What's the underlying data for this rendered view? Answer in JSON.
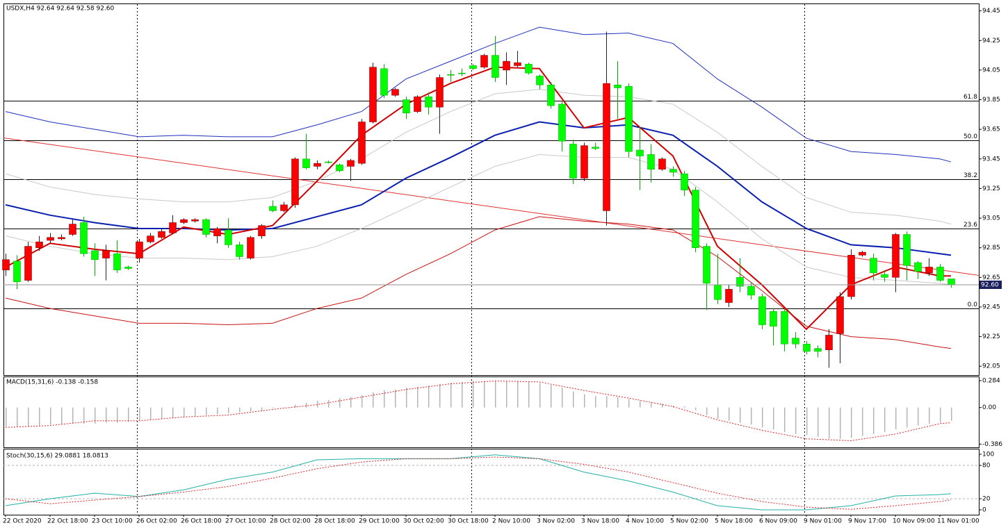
{
  "chart_data": [
    {
      "type": "candlestick",
      "title": "USDX,H4  92.64 92.64 92.58 92.60",
      "categories": [
        "22 Oct 2020",
        null,
        null,
        null,
        "22 Oct 18:00",
        null,
        null,
        null,
        "23 Oct 10:00",
        null,
        null,
        null,
        "26 Oct 02:00",
        null,
        null,
        null,
        "26 Oct 18:00",
        null,
        null,
        null,
        "27 Oct 10:00",
        null,
        null,
        null,
        "28 Oct 02:00",
        null,
        null,
        null,
        "28 Oct 18:00",
        null,
        null,
        null,
        "29 Oct 10:00",
        null,
        null,
        null,
        "30 Oct 02:00",
        null,
        null,
        null,
        "30 Oct 18:00",
        null,
        null,
        null,
        "2 Nov 10:00",
        null,
        null,
        null,
        "3 Nov 02:00",
        null,
        null,
        null,
        "3 Nov 18:00",
        null,
        null,
        null,
        "4 Nov 10:00",
        null,
        null,
        null,
        "5 Nov 02:00",
        null,
        null,
        null,
        "5 Nov 18:00",
        null,
        null,
        null,
        "6 Nov 09:00",
        null,
        null,
        null,
        "9 Nov 01:00",
        null,
        null,
        null,
        "9 Nov 17:00",
        null,
        null,
        null,
        "10 Nov 09:00",
        null,
        null,
        null,
        "11 Nov 01:00",
        null
      ],
      "open": [
        92.7,
        92.76,
        92.63,
        92.85,
        92.9,
        92.91,
        92.94,
        93.02,
        92.83,
        92.78,
        92.81,
        92.72,
        92.78,
        92.89,
        92.92,
        92.95,
        93.02,
        93.03,
        93.04,
        92.93,
        92.97,
        92.87,
        92.78,
        92.93,
        93.13,
        93.1,
        93.14,
        93.45,
        93.4,
        93.43,
        93.41,
        93.4,
        93.42,
        93.7,
        94.06,
        93.88,
        93.85,
        93.77,
        93.87,
        93.8,
        94.02,
        94.03,
        94.08,
        94.07,
        94.15,
        94.05,
        94.08,
        94.09,
        94.01,
        93.95,
        93.82,
        93.55,
        93.32,
        93.53,
        93.1,
        93.95,
        93.94,
        93.51,
        93.48,
        93.38,
        93.38,
        93.35,
        93.24,
        92.86,
        92.6,
        92.48,
        92.65,
        92.59,
        92.52,
        92.42,
        92.42,
        92.24,
        92.2,
        92.17,
        92.16,
        92.27,
        92.52,
        92.8,
        92.78,
        92.67,
        92.65,
        92.94,
        92.75,
        92.68,
        92.72,
        92.64
      ],
      "high": [
        92.81,
        92.8,
        92.89,
        92.93,
        92.95,
        92.94,
        93.04,
        93.06,
        92.88,
        92.87,
        92.9,
        92.73,
        92.91,
        92.95,
        92.98,
        93.07,
        93.05,
        93.05,
        93.05,
        92.99,
        93.05,
        92.89,
        92.93,
        93.01,
        93.17,
        93.16,
        93.46,
        93.62,
        93.44,
        93.44,
        93.42,
        93.45,
        93.72,
        94.1,
        94.09,
        93.93,
        93.87,
        93.88,
        93.9,
        94.02,
        94.05,
        94.06,
        94.09,
        94.16,
        94.28,
        94.17,
        94.18,
        94.1,
        94.02,
        93.97,
        93.84,
        93.58,
        93.56,
        93.56,
        94.31,
        94.11,
        93.96,
        93.67,
        93.55,
        93.46,
        93.4,
        93.37,
        93.26,
        92.88,
        92.81,
        92.6,
        92.78,
        92.62,
        92.54,
        92.44,
        92.44,
        92.28,
        92.22,
        92.19,
        92.3,
        92.55,
        92.84,
        92.83,
        92.81,
        92.7,
        92.95,
        92.96,
        92.76,
        92.78,
        92.74,
        92.64
      ],
      "low": [
        92.66,
        92.57,
        92.62,
        92.83,
        92.88,
        92.9,
        92.93,
        92.79,
        92.66,
        92.63,
        92.68,
        92.7,
        92.75,
        92.88,
        92.91,
        92.94,
        93.01,
        93.02,
        92.92,
        92.88,
        92.85,
        92.77,
        92.77,
        92.91,
        93.09,
        93.09,
        93.12,
        93.38,
        93.38,
        93.42,
        93.36,
        93.3,
        93.41,
        93.69,
        93.86,
        93.87,
        93.72,
        93.76,
        93.75,
        93.62,
        93.97,
        94.01,
        94.05,
        94.06,
        93.97,
        93.95,
        94.07,
        94.02,
        93.92,
        93.79,
        93.5,
        93.28,
        93.3,
        93.51,
        93.0,
        93.72,
        93.46,
        93.24,
        93.29,
        93.37,
        93.33,
        93.2,
        92.82,
        92.43,
        92.47,
        92.45,
        92.55,
        92.5,
        92.3,
        92.19,
        92.15,
        92.17,
        92.13,
        92.11,
        92.04,
        92.07,
        92.5,
        92.79,
        92.63,
        92.62,
        92.55,
        92.63,
        92.64,
        92.66,
        92.62,
        92.58
      ],
      "close": [
        92.77,
        92.62,
        92.86,
        92.89,
        92.92,
        92.92,
        93.01,
        92.81,
        92.77,
        92.83,
        92.7,
        92.71,
        92.89,
        92.93,
        92.96,
        93.02,
        93.04,
        93.04,
        92.94,
        92.98,
        92.87,
        92.79,
        92.92,
        93.0,
        93.1,
        93.14,
        93.45,
        93.39,
        93.42,
        93.43,
        93.37,
        93.44,
        93.7,
        94.07,
        93.88,
        93.92,
        93.76,
        93.87,
        93.8,
        94.0,
        94.02,
        94.03,
        94.06,
        94.15,
        94.0,
        94.11,
        94.1,
        94.03,
        93.95,
        93.81,
        93.57,
        93.32,
        93.54,
        93.52,
        93.96,
        93.93,
        93.5,
        93.47,
        93.38,
        93.45,
        93.36,
        93.24,
        92.85,
        92.61,
        92.5,
        92.57,
        92.59,
        92.53,
        92.33,
        92.32,
        92.2,
        92.2,
        92.15,
        92.15,
        92.26,
        92.52,
        92.8,
        92.82,
        92.68,
        92.65,
        92.94,
        92.73,
        92.69,
        92.72,
        92.63,
        92.6
      ],
      "up_color": "#ff0000",
      "down_color": "#00ff00",
      "ylim": [
        91.99,
        94.5
      ],
      "yticks": [
        94.45,
        94.25,
        94.05,
        93.85,
        93.65,
        93.45,
        93.25,
        93.05,
        92.85,
        92.65,
        92.45,
        92.25,
        92.05
      ],
      "series": [
        {
          "color": "#1e2fbf",
          "width": 1,
          "x": [
            0,
            4,
            8,
            12,
            16,
            20,
            24,
            28,
            32,
            36,
            40,
            44,
            48,
            52,
            56,
            60,
            64,
            68,
            72,
            76,
            80,
            84,
            85
          ],
          "values": [
            93.77,
            93.7,
            93.65,
            93.6,
            93.61,
            93.6,
            93.6,
            93.68,
            93.77,
            93.99,
            94.11,
            94.23,
            94.34,
            94.29,
            94.3,
            94.23,
            93.99,
            93.8,
            93.59,
            93.5,
            93.48,
            93.45,
            93.43
          ]
        },
        {
          "color": "#c8c8c8",
          "width": 1,
          "x": [
            0,
            4,
            8,
            12,
            16,
            20,
            24,
            28,
            32,
            36,
            40,
            44,
            48,
            52,
            56,
            60,
            64,
            68,
            72,
            76,
            80,
            84,
            85
          ],
          "values": [
            93.35,
            93.26,
            93.21,
            93.18,
            93.16,
            93.16,
            93.19,
            93.3,
            93.45,
            93.63,
            93.77,
            93.89,
            93.92,
            93.88,
            93.87,
            93.82,
            93.63,
            93.4,
            93.19,
            93.09,
            93.07,
            93.03,
            93.01
          ]
        },
        {
          "color": "#c8c8c8",
          "width": 1,
          "x": [
            0,
            4,
            8,
            12,
            16,
            20,
            24,
            28,
            32,
            36,
            40,
            44,
            48,
            52,
            56,
            60,
            64,
            68,
            72,
            76,
            80,
            84,
            85
          ],
          "values": [
            92.93,
            92.86,
            92.81,
            92.78,
            92.78,
            92.77,
            92.79,
            92.86,
            92.98,
            93.12,
            93.26,
            93.4,
            93.48,
            93.46,
            93.46,
            93.38,
            93.16,
            92.91,
            92.72,
            92.65,
            92.63,
            92.61,
            92.6
          ]
        },
        {
          "color": "#cc1010",
          "width": 1,
          "x": [
            0,
            4,
            8,
            12,
            16,
            20,
            24,
            28,
            32,
            36,
            40,
            44,
            48,
            52,
            56,
            60,
            64,
            68,
            72,
            76,
            80,
            84,
            85
          ],
          "values": [
            92.51,
            92.44,
            92.39,
            92.34,
            92.34,
            92.33,
            92.34,
            92.44,
            92.51,
            92.67,
            92.81,
            92.97,
            93.06,
            93.03,
            93.01,
            92.97,
            92.79,
            92.56,
            92.32,
            92.25,
            92.23,
            92.18,
            92.17
          ]
        },
        {
          "color": "#0a1fb0",
          "width": 2,
          "x": [
            0,
            4,
            8,
            12,
            16,
            20,
            24,
            28,
            32,
            36,
            40,
            44,
            48,
            52,
            56,
            60,
            64,
            68,
            72,
            76,
            80,
            84,
            85
          ],
          "values": [
            93.14,
            93.07,
            93.02,
            92.98,
            92.98,
            92.97,
            92.98,
            93.06,
            93.14,
            93.32,
            93.46,
            93.61,
            93.7,
            93.66,
            93.68,
            93.61,
            93.4,
            93.16,
            92.98,
            92.87,
            92.85,
            92.81,
            92.8
          ]
        },
        {
          "color": "#d00000",
          "width": 2,
          "x": [
            0,
            4,
            8,
            12,
            16,
            20,
            24,
            28,
            32,
            36,
            40,
            44,
            48,
            52,
            56,
            60,
            64,
            68,
            72,
            76,
            80,
            84,
            85
          ],
          "values": [
            92.72,
            92.88,
            92.84,
            92.81,
            92.99,
            92.94,
            93.0,
            93.3,
            93.61,
            93.82,
            93.96,
            94.07,
            94.06,
            93.66,
            93.73,
            93.47,
            92.86,
            92.6,
            92.3,
            92.6,
            92.72,
            92.66,
            92.66
          ]
        }
      ],
      "trendline": {
        "color": "#e03030",
        "x": [
          0,
          85
        ],
        "values": [
          93.59,
          92.69
        ]
      },
      "levels": [
        {
          "value": 93.845,
          "label": "61.8"
        },
        {
          "value": 93.578,
          "label": "50.0"
        },
        {
          "value": 93.315,
          "label": "38.2"
        },
        {
          "value": 92.982,
          "label": "23.6"
        },
        {
          "value": 92.44,
          "label": "0.0"
        }
      ],
      "last": {
        "value": 92.6,
        "label": "92.60"
      }
    },
    {
      "type": "macd",
      "title": "MACD(15,31,6) -0.138 -0.158",
      "ylim": [
        -0.42,
        0.32
      ],
      "yticks": [
        0.284,
        {
          "value": 0,
          "label": "0.00"
        },
        -0.386
      ],
      "color": "#b4b4b4",
      "values": [
        -0.2,
        -0.2,
        -0.2,
        -0.19,
        -0.18,
        -0.18,
        -0.17,
        -0.17,
        -0.17,
        -0.16,
        -0.16,
        -0.15,
        -0.14,
        -0.13,
        -0.12,
        -0.11,
        -0.1,
        -0.09,
        -0.08,
        -0.07,
        -0.06,
        -0.05,
        -0.04,
        -0.03,
        -0.01,
        0.0,
        0.03,
        0.05,
        0.07,
        0.08,
        0.1,
        0.11,
        0.13,
        0.16,
        0.18,
        0.19,
        0.21,
        0.22,
        0.23,
        0.25,
        0.26,
        0.27,
        0.28,
        0.28,
        0.28,
        0.28,
        0.28,
        0.27,
        0.26,
        0.24,
        0.21,
        0.17,
        0.14,
        0.12,
        0.12,
        0.11,
        0.09,
        0.07,
        0.05,
        0.04,
        0.02,
        0.01,
        -0.03,
        -0.08,
        -0.12,
        -0.14,
        -0.16,
        -0.18,
        -0.21,
        -0.23,
        -0.26,
        -0.28,
        -0.29,
        -0.31,
        -0.33,
        -0.33,
        -0.32,
        -0.3,
        -0.28,
        -0.26,
        -0.23,
        -0.21,
        -0.19,
        -0.17,
        -0.16,
        -0.14
      ],
      "series": [
        {
          "color": "#e02020",
          "dashed": true,
          "x": [
            0,
            4,
            8,
            12,
            16,
            20,
            24,
            28,
            32,
            36,
            40,
            44,
            48,
            52,
            56,
            60,
            64,
            68,
            72,
            76,
            80,
            84,
            85
          ],
          "values": [
            -0.21,
            -0.19,
            -0.14,
            -0.14,
            -0.1,
            -0.08,
            -0.02,
            0.03,
            0.11,
            0.19,
            0.25,
            0.28,
            0.27,
            0.18,
            0.1,
            0.01,
            -0.13,
            -0.24,
            -0.33,
            -0.35,
            -0.28,
            -0.17,
            -0.16
          ]
        }
      ]
    },
    {
      "type": "stochastic",
      "title": "Stoch(30,15,6) 29.0881 18.0813",
      "ylim": [
        -8.75,
        108.75
      ],
      "yticks": [
        100,
        80,
        20,
        0
      ],
      "grid_levels": [
        80,
        20
      ],
      "series": [
        {
          "color": "#20b0a8",
          "dashed": false,
          "x": [
            0,
            4,
            8,
            12,
            16,
            20,
            24,
            28,
            32,
            36,
            40,
            44,
            48,
            52,
            56,
            60,
            64,
            68,
            72,
            76,
            80,
            84,
            85
          ],
          "values": [
            7.5,
            20,
            30,
            24,
            36,
            55,
            68,
            90,
            92,
            92,
            92,
            99,
            92,
            68,
            52,
            32,
            7.5,
            0,
            0,
            7.5,
            25,
            27.5,
            29
          ]
        },
        {
          "color": "#e02020",
          "dashed": true,
          "x": [
            0,
            4,
            8,
            12,
            16,
            20,
            24,
            28,
            32,
            36,
            40,
            44,
            48,
            52,
            56,
            60,
            64,
            68,
            72,
            76,
            80,
            84,
            85
          ],
          "values": [
            20,
            11,
            17.5,
            24,
            32,
            42,
            57,
            74,
            86,
            92,
            92,
            95,
            92,
            82,
            68,
            49,
            30,
            15,
            5,
            1,
            7.5,
            15,
            18
          ]
        }
      ]
    }
  ]
}
